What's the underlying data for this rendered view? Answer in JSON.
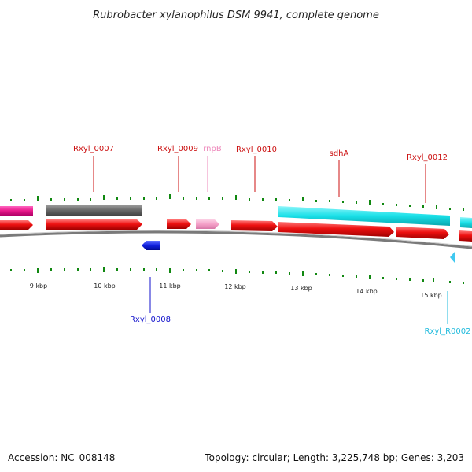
{
  "title": "Rubrobacter xylanophilus DSM 9941, complete genome",
  "footer": {
    "accession": "Accession: NC_008148",
    "summary": "Topology: circular; Length: 3,225,748 bp; Genes: 3,203"
  },
  "colors": {
    "cds": "#ee1111",
    "gene_gray": "#666666",
    "gene_pink": "#e8188a",
    "gene_cyan": "#19e0e8",
    "rnpB": "#f4a0c8",
    "rxyl_0008": "#1020e0",
    "trna": "#40c8f0",
    "tick": "#118811",
    "backbone": "#888888",
    "label_red": "#cc1111",
    "label_pink": "#ee88bb",
    "label_blue": "#1111cc",
    "label_cyan": "#22bbdd"
  },
  "scale": [
    {
      "label": "9 kbp"
    },
    {
      "label": "10 kbp"
    },
    {
      "label": "11 kbp"
    },
    {
      "label": "12 kbp"
    },
    {
      "label": "13 kbp"
    },
    {
      "label": "14 kbp"
    },
    {
      "label": "15 kbp"
    }
  ],
  "labels": {
    "rxyl_0007": "Rxyl_0007",
    "rxyl_0008": "Rxyl_0008",
    "rxyl_0009": "Rxyl_0009",
    "rnpB": "rnpB",
    "rxyl_0010": "Rxyl_0010",
    "sdhA": "sdhA",
    "rxyl_0012": "Rxyl_0012",
    "rxyl_R0002": "Rxyl_R0002"
  }
}
